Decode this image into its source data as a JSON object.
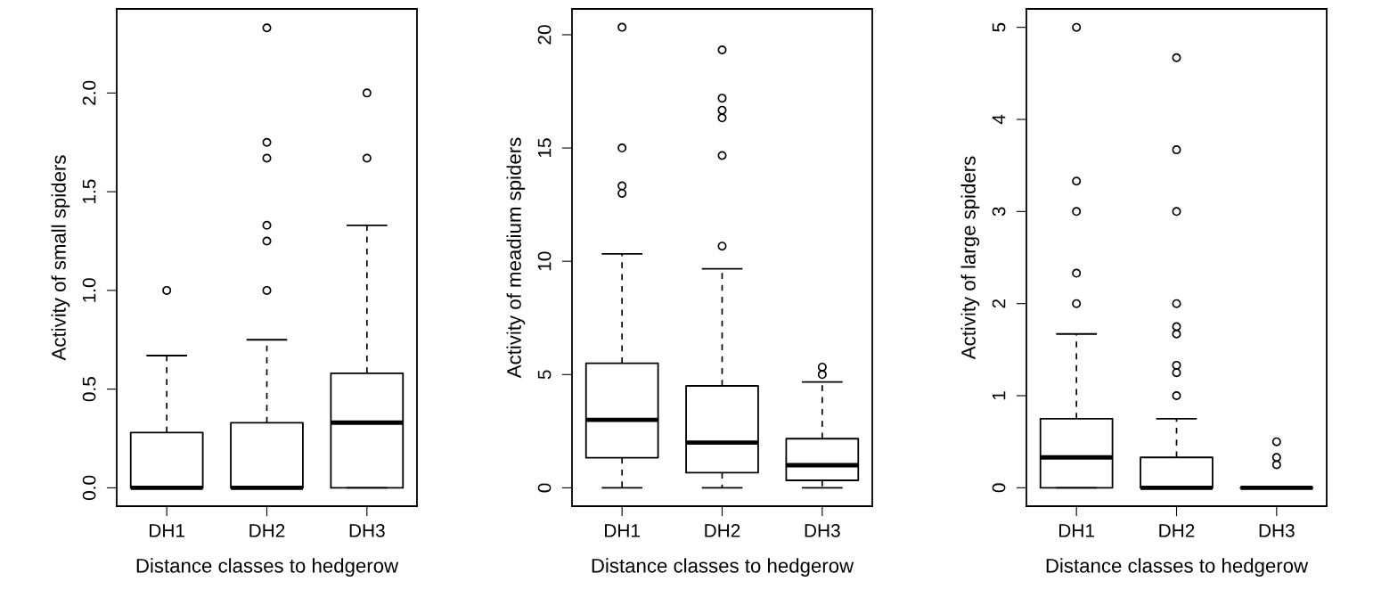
{
  "chart_data": [
    {
      "type": "box",
      "ylabel": "Activity of small spiders",
      "xlabel": "Distance classes to hedgerow",
      "categories": [
        "DH1",
        "DH2",
        "DH3"
      ],
      "ylim": [
        -0.093,
        2.426
      ],
      "yticks": [
        {
          "value": 0,
          "label": "0.0"
        },
        0.5,
        {
          "value": 1,
          "label": "1.0"
        },
        1.5,
        {
          "value": 2,
          "label": "2.0"
        }
      ],
      "boxes": [
        {
          "low": 0,
          "q1": 0,
          "median": 0,
          "q3": 0.28,
          "high": 0.67,
          "outliers": [
            1.0
          ]
        },
        {
          "low": 0,
          "q1": 0,
          "median": 0,
          "q3": 0.33,
          "high": 0.75,
          "outliers": [
            1.0,
            1.25,
            1.33,
            1.67,
            1.75,
            2.33
          ]
        },
        {
          "low": 0,
          "q1": 0,
          "median": 0.33,
          "q3": 0.58,
          "high": 1.33,
          "outliers": [
            1.67,
            2.0
          ]
        }
      ]
    },
    {
      "type": "box",
      "ylabel": "Activity of meadium spiders",
      "xlabel": "Distance classes to hedgerow",
      "categories": [
        "DH1",
        "DH2",
        "DH3"
      ],
      "ylim": [
        -0.81,
        21.14
      ],
      "yticks": [
        0,
        5,
        10,
        15,
        20
      ],
      "boxes": [
        {
          "low": 0,
          "q1": 1.33,
          "median": 3,
          "q3": 5.5,
          "high": 10.33,
          "outliers": [
            13,
            13.33,
            15,
            20.33
          ]
        },
        {
          "low": 0,
          "q1": 0.67,
          "median": 2,
          "q3": 4.5,
          "high": 9.67,
          "outliers": [
            10.67,
            14.67,
            16.33,
            16.67,
            17.2,
            19.33
          ]
        },
        {
          "low": 0,
          "q1": 0.33,
          "median": 1,
          "q3": 2.17,
          "high": 4.67,
          "outliers": [
            5,
            5.33
          ]
        }
      ]
    },
    {
      "type": "box",
      "ylabel": "Activity of large spiders",
      "xlabel": "Distance classes to hedgerow",
      "categories": [
        "DH1",
        "DH2",
        "DH3"
      ],
      "ylim": [
        -0.2,
        5.2
      ],
      "yticks": [
        0,
        1,
        2,
        3,
        4,
        5
      ],
      "boxes": [
        {
          "low": 0,
          "q1": 0,
          "median": 0.33,
          "q3": 0.75,
          "high": 1.67,
          "outliers": [
            2,
            2.33,
            3,
            3.33,
            5
          ]
        },
        {
          "low": 0,
          "q1": 0,
          "median": 0,
          "q3": 0.33,
          "high": 0.75,
          "outliers": [
            1,
            1.25,
            1.33,
            1.67,
            1.75,
            2,
            3,
            3.67,
            4.67
          ]
        },
        {
          "low": 0,
          "q1": 0,
          "median": 0,
          "q3": 0,
          "high": 0,
          "outliers": [
            0.25,
            0.33,
            0.5
          ]
        }
      ]
    }
  ]
}
